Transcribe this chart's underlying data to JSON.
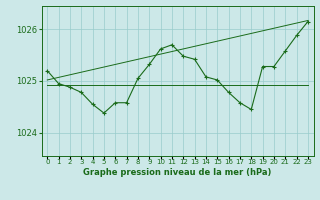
{
  "title": "Graphe pression niveau de la mer (hPa)",
  "bg_color": "#cce8e8",
  "grid_color": "#99cccc",
  "line_color": "#1a6b1a",
  "x_labels": [
    "0",
    "1",
    "2",
    "3",
    "4",
    "5",
    "6",
    "7",
    "8",
    "9",
    "10",
    "11",
    "12",
    "13",
    "14",
    "15",
    "16",
    "17",
    "18",
    "19",
    "20",
    "21",
    "22",
    "23"
  ],
  "ylim": [
    1023.55,
    1026.45
  ],
  "yticks": [
    1024,
    1025,
    1026
  ],
  "series_main": [
    1025.2,
    1024.95,
    1024.88,
    1024.78,
    1024.55,
    1024.38,
    1024.58,
    1024.58,
    1025.05,
    1025.32,
    1025.62,
    1025.7,
    1025.48,
    1025.42,
    1025.08,
    1025.02,
    1024.78,
    1024.58,
    1024.45,
    1025.28,
    1025.28,
    1025.58,
    1025.88,
    1026.15
  ],
  "series_flat": [
    1024.92,
    1024.92,
    1024.92,
    1024.92,
    1024.92,
    1024.92,
    1024.92,
    1024.92,
    1024.92,
    1024.92,
    1024.92,
    1024.92,
    1024.92,
    1024.92,
    1024.92,
    1024.92,
    1024.92,
    1024.92,
    1024.92,
    1024.92,
    1024.92,
    1024.92,
    1024.92,
    1024.92
  ],
  "series_trend": [
    1025.02,
    1025.07,
    1025.12,
    1025.17,
    1025.22,
    1025.27,
    1025.32,
    1025.37,
    1025.42,
    1025.47,
    1025.52,
    1025.57,
    1025.62,
    1025.67,
    1025.72,
    1025.77,
    1025.82,
    1025.87,
    1025.92,
    1025.97,
    1026.02,
    1026.07,
    1026.12,
    1026.17
  ]
}
